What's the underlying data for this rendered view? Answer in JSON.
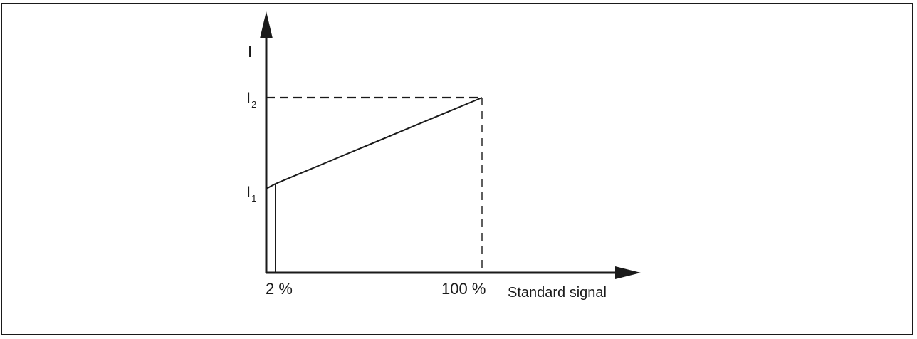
{
  "diagram": {
    "y_axis_label": "I",
    "y_levels": [
      {
        "main": "I",
        "sub": "2"
      },
      {
        "main": "I",
        "sub": "1"
      }
    ],
    "x_ticks": [
      "2 %",
      "100 %"
    ],
    "x_axis_label": "Standard signal"
  },
  "colors": {
    "line": "#1a1a1a",
    "background": "#ffffff"
  }
}
